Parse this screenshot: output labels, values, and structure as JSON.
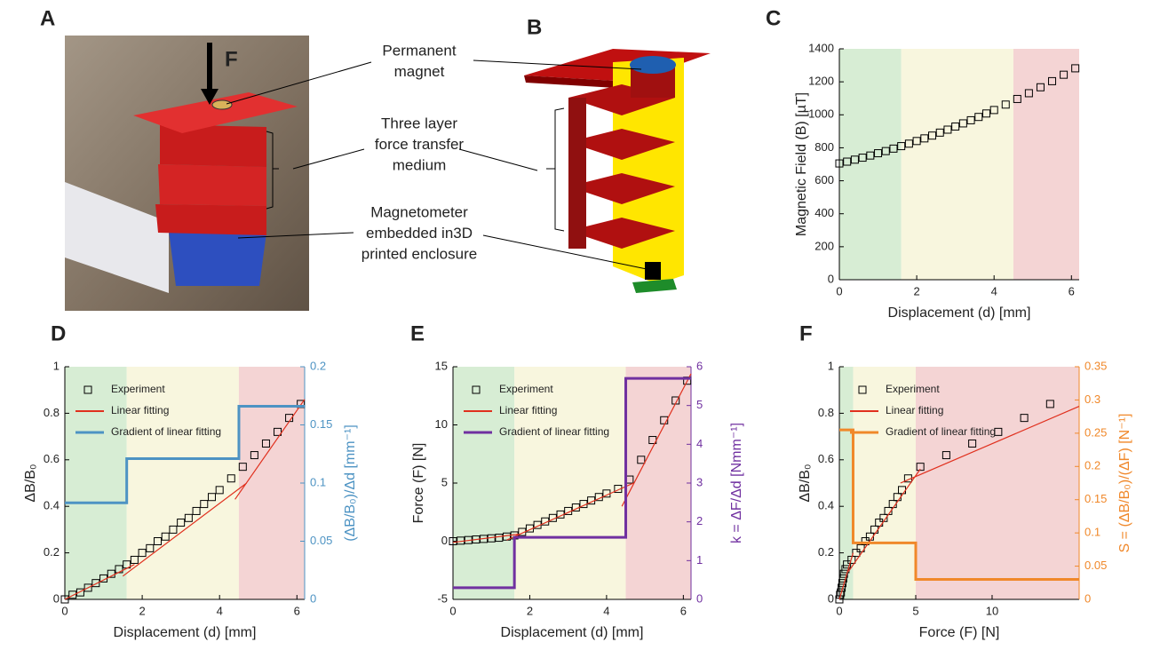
{
  "panel_labels": [
    "A",
    "B",
    "C",
    "D",
    "E",
    "F"
  ],
  "force_label": "F",
  "annotations": {
    "magnet": [
      "Permanent",
      "magnet"
    ],
    "medium": [
      "Three layer",
      "force transfer",
      "medium"
    ],
    "sensor": [
      "Magnetometer",
      "embedded in3D",
      "printed enclosure"
    ]
  },
  "chart_data": [
    {
      "type": "scatter",
      "xlabel": "Displacement (d) [mm]",
      "ylabel": "Magnetic Field (B) [µT]",
      "xlim": [
        0,
        6.2
      ],
      "ylim": [
        0,
        1400
      ],
      "xticks": [
        0,
        2,
        4,
        6
      ],
      "yticks": [
        0,
        200,
        400,
        600,
        800,
        1000,
        1200,
        1400
      ],
      "regions": [
        {
          "start": 0,
          "end": 1.6,
          "color": "#d7edd4"
        },
        {
          "start": 1.6,
          "end": 4.5,
          "color": "#f8f6de"
        },
        {
          "start": 4.5,
          "end": 6.2,
          "color": "#f4d4d4"
        }
      ],
      "series": [
        {
          "type": "scatter",
          "color": "#000000",
          "x": [
            0,
            0.2,
            0.4,
            0.6,
            0.8,
            1,
            1.2,
            1.4,
            1.6,
            1.8,
            2,
            2.2,
            2.4,
            2.6,
            2.8,
            3,
            3.2,
            3.4,
            3.6,
            3.8,
            4,
            4.3,
            4.6,
            4.9,
            5.2,
            5.5,
            5.8,
            6.1
          ],
          "values": [
            705,
            716,
            728,
            740,
            753,
            767,
            780,
            795,
            810,
            825,
            841,
            857,
            874,
            892,
            910,
            929,
            948,
            967,
            987,
            1008,
            1029,
            1062,
            1096,
            1131,
            1167,
            1204,
            1243,
            1282
          ]
        }
      ]
    },
    {
      "type": "scatter",
      "xlabel": "Displacement (d) [mm]",
      "ylabel": "ΔB/B₀",
      "y2label": "(ΔB/B₀)/Δd [mm⁻¹]",
      "y2color": "#4d93c3",
      "xlim": [
        0,
        6.2
      ],
      "ylim": [
        0,
        1
      ],
      "y2lim": [
        0,
        0.2
      ],
      "xticks": [
        0,
        2,
        4,
        6
      ],
      "yticks": [
        0,
        0.2,
        0.4,
        0.6,
        0.8,
        1
      ],
      "y2ticks": [
        0,
        0.05,
        0.1,
        0.15,
        0.2
      ],
      "legend": "upper left",
      "regions": [
        {
          "start": 0,
          "end": 1.6,
          "color": "#d7edd4"
        },
        {
          "start": 1.6,
          "end": 4.5,
          "color": "#f8f6de"
        },
        {
          "start": 4.5,
          "end": 6.2,
          "color": "#f4d4d4"
        }
      ],
      "series": [
        {
          "name": "Experiment",
          "type": "scatter",
          "color": "#000000",
          "x": [
            0,
            0.2,
            0.4,
            0.6,
            0.8,
            1,
            1.2,
            1.4,
            1.6,
            1.8,
            2,
            2.2,
            2.4,
            2.6,
            2.8,
            3,
            3.2,
            3.4,
            3.6,
            3.8,
            4,
            4.3,
            4.6,
            4.9,
            5.2,
            5.5,
            5.8,
            6.1
          ],
          "values": [
            0,
            0.02,
            0.03,
            0.05,
            0.07,
            0.09,
            0.11,
            0.13,
            0.15,
            0.17,
            0.2,
            0.22,
            0.25,
            0.27,
            0.3,
            0.33,
            0.35,
            0.38,
            0.41,
            0.44,
            0.47,
            0.52,
            0.57,
            0.62,
            0.67,
            0.72,
            0.78,
            0.84
          ]
        },
        {
          "name": "Linear fitting",
          "type": "line",
          "color": "#e0301e",
          "x": [
            0,
            1.8,
            null,
            1.5,
            4.7,
            null,
            4.4,
            6.2
          ],
          "values": [
            0,
            0.15,
            null,
            0.1,
            0.5,
            null,
            0.43,
            0.86
          ]
        },
        {
          "name": "Gradient of linear fitting",
          "type": "line",
          "axis": "y2",
          "color": "#4d93c3",
          "width": 3,
          "x": [
            0,
            1.6,
            1.6,
            4.5,
            4.5,
            6.2
          ],
          "values": [
            0.083,
            0.083,
            0.121,
            0.121,
            0.166,
            0.166
          ]
        }
      ]
    },
    {
      "type": "scatter",
      "xlabel": "Displacement (d) [mm]",
      "ylabel": "Force (F) [N]",
      "y2label": "k = ΔF/Δd [Nmm⁻¹]",
      "y2color": "#7030a0",
      "xlim": [
        0,
        6.2
      ],
      "ylim": [
        -5,
        15
      ],
      "y2lim": [
        0,
        6
      ],
      "xticks": [
        0,
        2,
        4,
        6
      ],
      "yticks": [
        -5,
        0,
        5,
        10,
        15
      ],
      "y2ticks": [
        0,
        1,
        2,
        3,
        4,
        5,
        6
      ],
      "legend": "upper left",
      "regions": [
        {
          "start": 0,
          "end": 1.6,
          "color": "#d7edd4"
        },
        {
          "start": 1.6,
          "end": 4.5,
          "color": "#f8f6de"
        },
        {
          "start": 4.5,
          "end": 6.2,
          "color": "#f4d4d4"
        }
      ],
      "series": [
        {
          "name": "Experiment",
          "type": "scatter",
          "color": "#000000",
          "x": [
            0,
            0.2,
            0.4,
            0.6,
            0.8,
            1,
            1.2,
            1.4,
            1.6,
            1.8,
            2,
            2.2,
            2.4,
            2.6,
            2.8,
            3,
            3.2,
            3.4,
            3.6,
            3.8,
            4,
            4.3,
            4.6,
            4.9,
            5.2,
            5.5,
            5.8,
            6.1
          ],
          "values": [
            0,
            0.05,
            0.1,
            0.15,
            0.2,
            0.25,
            0.3,
            0.4,
            0.5,
            0.8,
            1.1,
            1.4,
            1.7,
            2,
            2.3,
            2.6,
            2.9,
            3.2,
            3.5,
            3.8,
            4.1,
            4.5,
            5.3,
            7,
            8.7,
            10.4,
            12.1,
            13.8
          ]
        },
        {
          "name": "Linear fitting",
          "type": "line",
          "color": "#e0301e",
          "x": [
            0,
            1.7,
            null,
            1.4,
            4.7,
            null,
            4.4,
            6.2
          ],
          "values": [
            -0.1,
            0.6,
            null,
            0.1,
            5,
            null,
            3,
            14.4
          ]
        },
        {
          "name": "Gradient of linear fitting",
          "type": "line",
          "axis": "y2",
          "color": "#7030a0",
          "width": 3,
          "x": [
            0,
            1.6,
            1.6,
            4.5,
            4.5,
            6.2
          ],
          "values": [
            0.3,
            0.3,
            1.6,
            1.6,
            5.7,
            5.7
          ]
        }
      ]
    },
    {
      "type": "scatter",
      "xlabel": "Force (F) [N]",
      "ylabel": "ΔB/B₀",
      "y2label": "S = (ΔB/B₀)/(ΔF) [N⁻¹]",
      "y2color": "#f0882a",
      "xlim": [
        0,
        15.7
      ],
      "ylim": [
        0,
        1
      ],
      "y2lim": [
        0,
        0.35
      ],
      "xticks": [
        0,
        5,
        10
      ],
      "yticks": [
        0,
        0.2,
        0.4,
        0.6,
        0.8,
        1
      ],
      "y2ticks": [
        0,
        0.05,
        0.1,
        0.15,
        0.2,
        0.25,
        0.3,
        0.35
      ],
      "legend": "upper left",
      "regions": [
        {
          "start": 0,
          "end": 0.9,
          "color": "#d7edd4"
        },
        {
          "start": 0.9,
          "end": 5,
          "color": "#f8f6de"
        },
        {
          "start": 5,
          "end": 15.7,
          "color": "#f4d4d4"
        }
      ],
      "series": [
        {
          "name": "Experiment",
          "type": "scatter",
          "color": "#000000",
          "x": [
            0,
            0.05,
            0.1,
            0.15,
            0.2,
            0.25,
            0.3,
            0.4,
            0.5,
            0.8,
            1.1,
            1.4,
            1.7,
            2,
            2.3,
            2.6,
            2.9,
            3.2,
            3.5,
            3.8,
            4.1,
            4.5,
            5.3,
            7,
            8.7,
            10.4,
            12.1,
            13.8
          ],
          "values": [
            0,
            0.02,
            0.03,
            0.05,
            0.07,
            0.09,
            0.11,
            0.13,
            0.15,
            0.17,
            0.2,
            0.22,
            0.25,
            0.27,
            0.3,
            0.33,
            0.35,
            0.38,
            0.41,
            0.44,
            0.47,
            0.52,
            0.57,
            0.62,
            0.67,
            0.72,
            0.78,
            0.84
          ]
        },
        {
          "name": "Linear fitting",
          "type": "line",
          "color": "#e0301e",
          "x": [
            0,
            0.9,
            null,
            0.6,
            5.3,
            null,
            4,
            15.7
          ],
          "values": [
            0,
            0.2,
            null,
            0.12,
            0.56,
            null,
            0.5,
            0.83
          ]
        },
        {
          "name": "Gradient of linear fitting",
          "type": "line",
          "axis": "y2",
          "color": "#f0882a",
          "width": 3,
          "x": [
            0,
            0.9,
            0.9,
            5,
            5,
            15.7
          ],
          "values": [
            0.255,
            0.255,
            0.085,
            0.085,
            0.03,
            0.03
          ]
        }
      ]
    }
  ]
}
